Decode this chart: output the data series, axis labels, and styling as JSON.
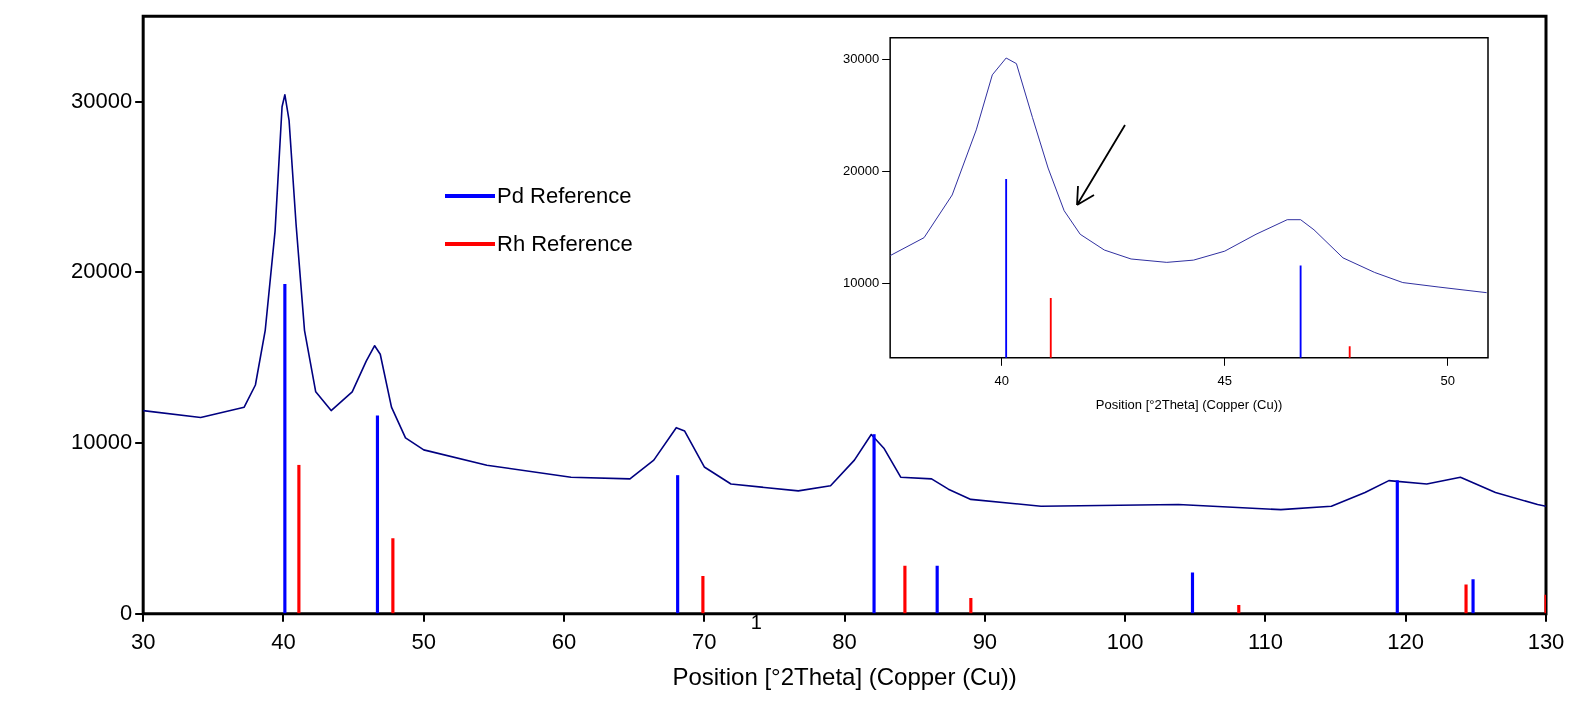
{
  "chart_data": [
    {
      "type": "line",
      "xlabel": "Position [°2Theta] (Copper (Cu))",
      "xlim": [
        30,
        130
      ],
      "xticks": [
        30,
        40,
        50,
        60,
        70,
        80,
        90,
        100,
        110,
        120,
        130
      ],
      "ylim": [
        0,
        35000
      ],
      "yticks": [
        0,
        10000,
        20000,
        30000
      ],
      "legend": "top left",
      "annotations": [
        "1"
      ],
      "series": [
        {
          "color": "#000080",
          "x": [
            30.0,
            34.1,
            37.2,
            38.0,
            38.7,
            39.4,
            39.9,
            40.1,
            40.4,
            40.9,
            41.5,
            42.3,
            43.4,
            44.9,
            45.9,
            46.5,
            46.9,
            47.7,
            48.7,
            50.0,
            54.5,
            60.5,
            64.7,
            66.4,
            68.0,
            68.6,
            70.0,
            71.9,
            76.7,
            79.0,
            80.7,
            81.9,
            82.8,
            84.0,
            86.2,
            87.4,
            89.0,
            94.0,
            103.8,
            111.1,
            114.7,
            117.1,
            118.8,
            121.5,
            123.9,
            126.4,
            129.4,
            130.0
          ],
          "values": [
            11900,
            11500,
            12100,
            13400,
            16600,
            22400,
            29700,
            30400,
            28900,
            22800,
            16600,
            13000,
            11900,
            13000,
            14800,
            15700,
            15200,
            12100,
            10300,
            9600,
            8700,
            8000,
            7900,
            9000,
            10900,
            10700,
            8600,
            7600,
            7200,
            7500,
            9000,
            10500,
            9700,
            8000,
            7900,
            7300,
            6700,
            6300,
            6400,
            6100,
            6300,
            7100,
            7800,
            7600,
            8000,
            7100,
            6400,
            6300
          ]
        },
        {
          "type": "bar",
          "name": "Pd Reference",
          "color": "#0000ff",
          "x": [
            40.1,
            46.7,
            68.1,
            82.1,
            86.6,
            104.8,
            119.4,
            124.8
          ],
          "values": [
            19300,
            11600,
            8100,
            10500,
            2800,
            2400,
            7800,
            2000
          ]
        },
        {
          "type": "bar",
          "name": "Rh Reference",
          "color": "#ff0000",
          "x": [
            41.1,
            47.8,
            69.9,
            84.3,
            89.0,
            108.1,
            124.3,
            130.0
          ],
          "values": [
            8700,
            4400,
            2200,
            2800,
            900,
            500,
            1700,
            1100
          ]
        }
      ]
    },
    {
      "type": "line",
      "xlabel": "Position [°2Theta] (Copper (Cu))",
      "xlim": [
        37.5,
        50.9
      ],
      "xticks": [
        40,
        45,
        50
      ],
      "ylim": [
        3400,
        31900
      ],
      "yticks": [
        10000,
        20000,
        30000
      ],
      "series": [
        {
          "color": "#3030a0",
          "x": [
            37.5,
            38.26,
            38.89,
            39.43,
            39.79,
            40.1,
            40.33,
            40.69,
            41.04,
            41.4,
            41.76,
            42.3,
            42.9,
            43.7,
            44.3,
            45.0,
            45.7,
            46.4,
            46.7,
            47.0,
            47.65,
            48.36,
            48.99,
            49.8,
            50.87
          ],
          "values": [
            12500,
            14100,
            17900,
            23700,
            28600,
            30100,
            29600,
            24800,
            20300,
            16500,
            14400,
            13000,
            12200,
            11900,
            12100,
            12900,
            14400,
            15700,
            15700,
            14800,
            12300,
            11000,
            10100,
            9700,
            9200
          ]
        },
        {
          "type": "bar",
          "color": "#0000ff",
          "x": [
            40.1,
            46.7
          ],
          "values": [
            19300,
            11600
          ]
        },
        {
          "type": "bar",
          "color": "#ff0000",
          "x": [
            41.1,
            47.8
          ],
          "values": [
            8700,
            4400
          ]
        }
      ]
    }
  ]
}
